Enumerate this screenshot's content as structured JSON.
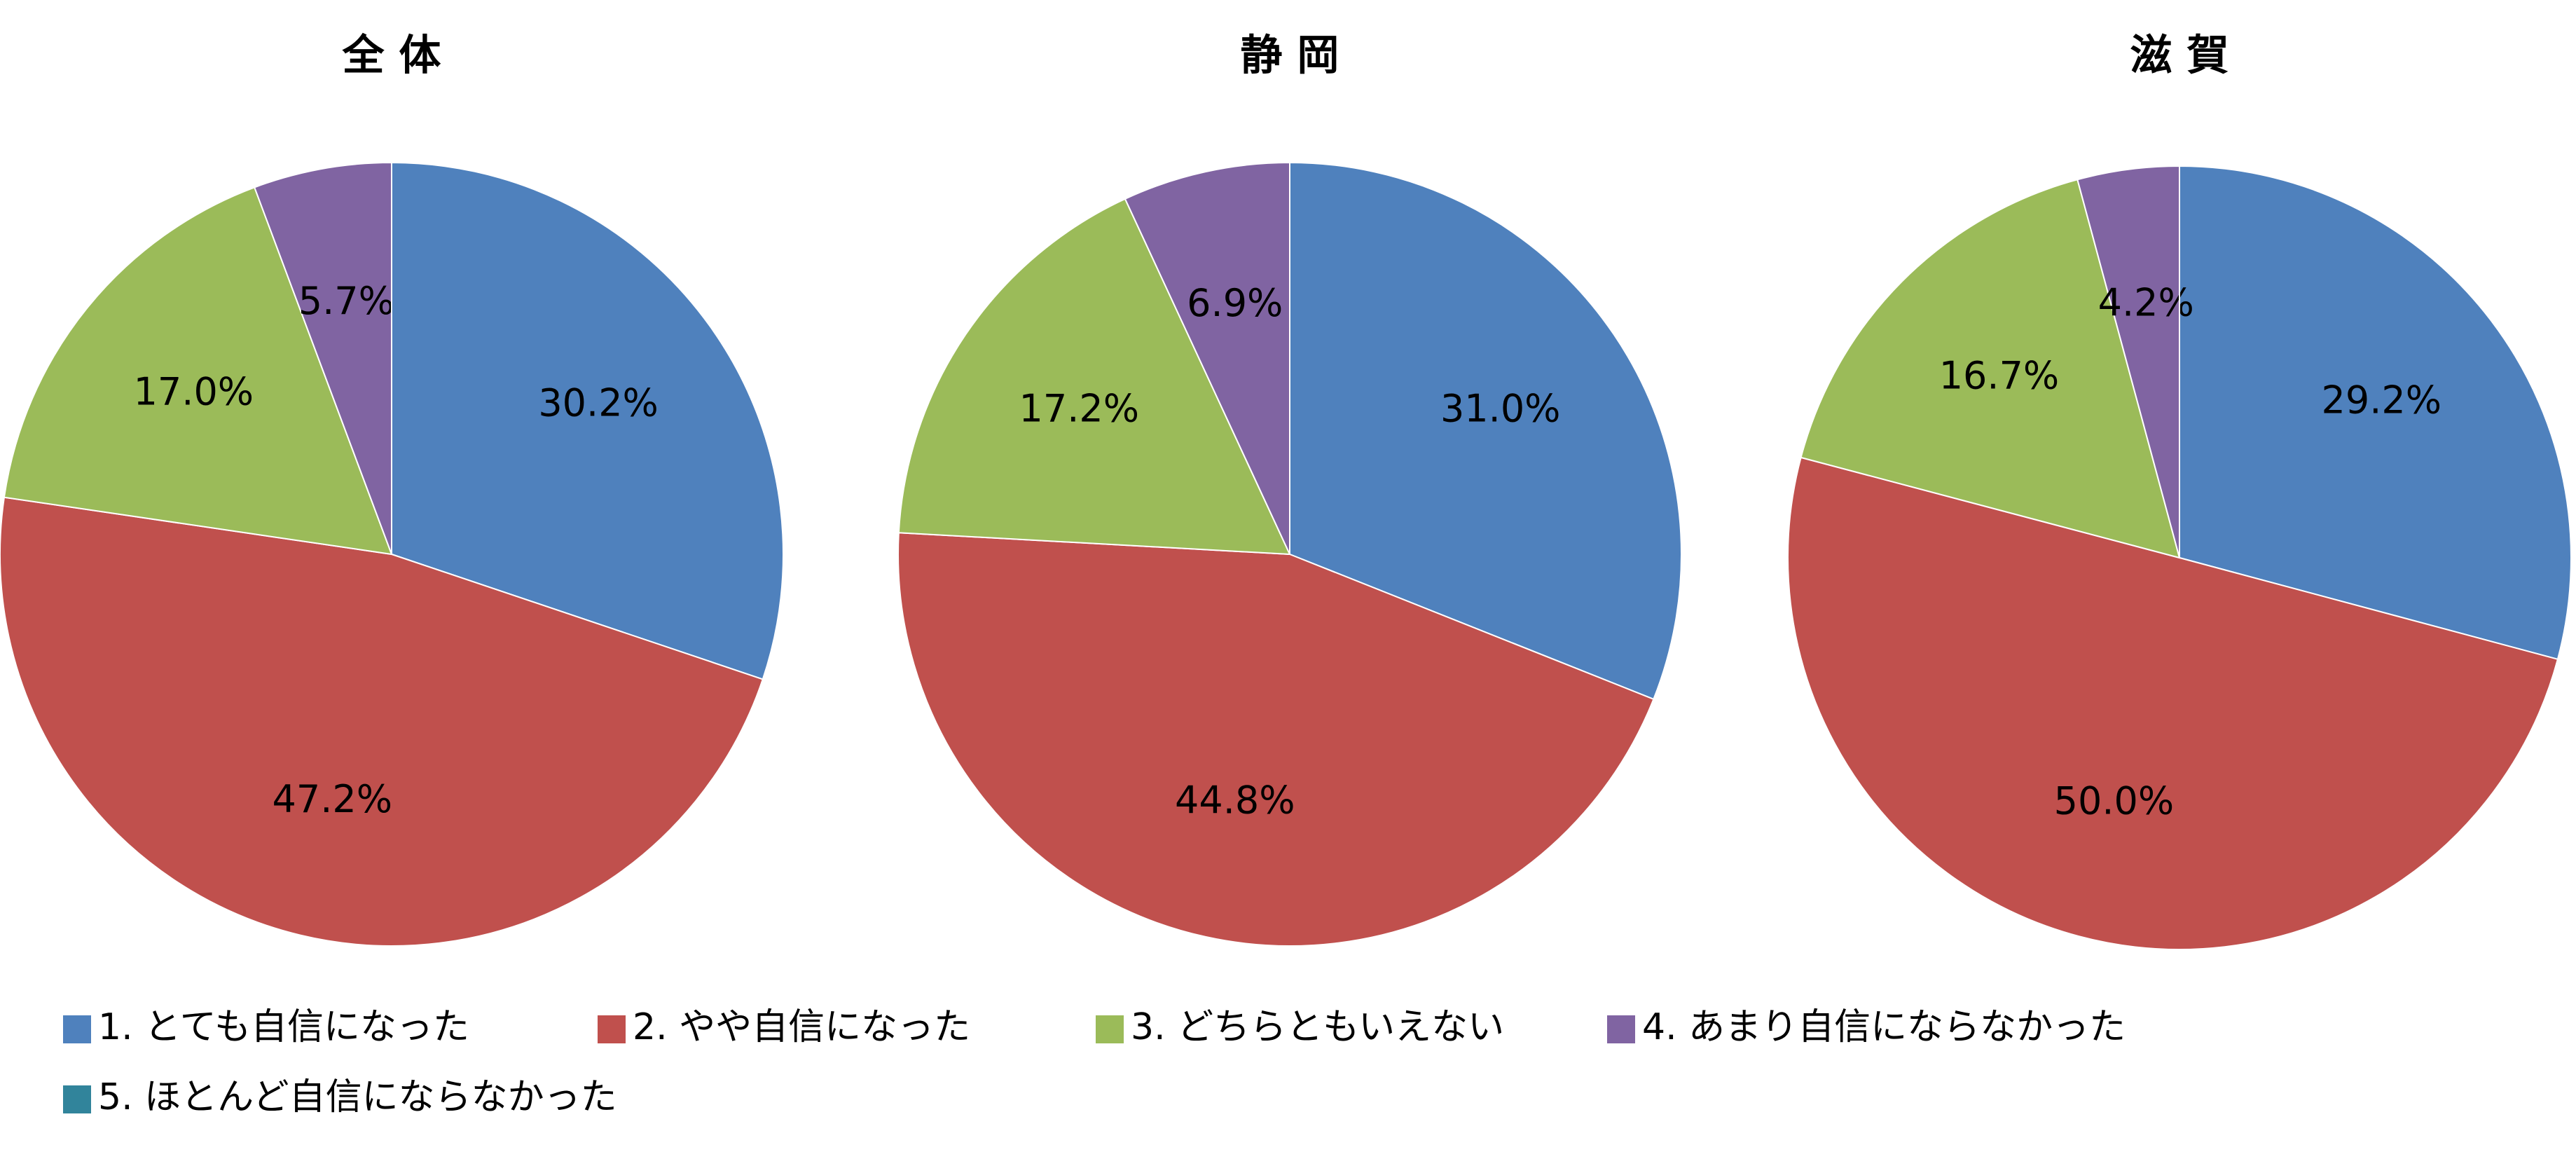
{
  "chart_data": [
    {
      "type": "pie",
      "title": "全 体",
      "categories": [
        "1. とても自信になった",
        "2. やや自信になった",
        "3. どちらともいえない",
        "4. あまり自信にならなかった",
        "5. ほとんど自信にならなかった"
      ],
      "values": [
        30.2,
        47.2,
        17.0,
        5.7,
        0
      ],
      "value_labels": [
        "30.2%",
        "47.2%",
        "17.0%",
        "5.7%",
        null
      ],
      "colors": [
        "#4f81bd",
        "#c0504d",
        "#9bbb59",
        "#8064a2",
        "#31849b"
      ]
    },
    {
      "type": "pie",
      "title": "静 岡",
      "categories": [
        "1. とても自信になった",
        "2. やや自信になった",
        "3. どちらともいえない",
        "4. あまり自信にならなかった",
        "5. ほとんど自信にならなかった"
      ],
      "values": [
        31.0,
        44.8,
        17.2,
        6.9,
        0
      ],
      "value_labels": [
        "31.0%",
        "44.8%",
        "17.2%",
        "6.9%",
        null
      ],
      "colors": [
        "#4f81bd",
        "#c0504d",
        "#9bbb59",
        "#8064a2",
        "#31849b"
      ]
    },
    {
      "type": "pie",
      "title": "滋 賀",
      "categories": [
        "1. とても自信になった",
        "2. やや自信になった",
        "3. どちらともいえない",
        "4. あまり自信にならなかった",
        "5. ほとんど自信にならなかった"
      ],
      "values": [
        29.2,
        50.0,
        16.7,
        4.2,
        0
      ],
      "value_labels": [
        "29.2%",
        "50.0%",
        "16.7%",
        "4.2%",
        null
      ],
      "colors": [
        "#4f81bd",
        "#c0504d",
        "#9bbb59",
        "#8064a2",
        "#31849b"
      ]
    }
  ]
}
